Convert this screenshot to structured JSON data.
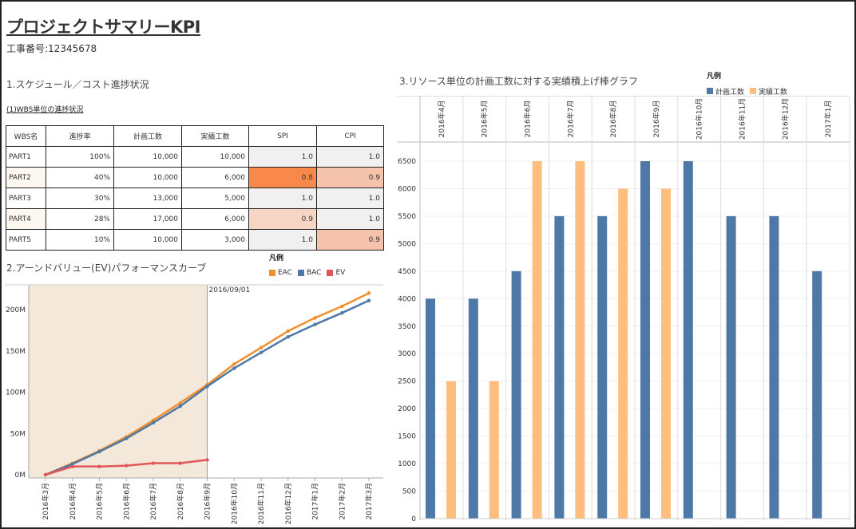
{
  "header": {
    "title": "プロジェクトサマリーKPI",
    "project_no": "工事番号:12345678"
  },
  "sections": {
    "s1": "1.スケジュール／コスト進捗状況",
    "s1_sub": "(1)WBS単位の進捗状況",
    "s2": "2.アーンドバリュー(EV)パフォーマンスカーブ",
    "s3": "3.リソース単位の計画工数に対する実績積上げ棒グラフ"
  },
  "colors": {
    "eac": "#f28e2b",
    "bac": "#4e79a7",
    "ev": "#e15759",
    "plan": "#4e79a7",
    "actual": "#ffbe7d",
    "shade": "#f3e8d9",
    "heat_strong": "#f9894a",
    "heat_light": "#f5c3ab",
    "heat_faint": "#f7d5c4",
    "heat_none": "#f0f0f0"
  },
  "table": {
    "headers": [
      "WBS名",
      "進捗率",
      "計画工数",
      "実績工数",
      "SPI",
      "CPI"
    ],
    "rows": [
      {
        "name": "PART1",
        "progress": "100%",
        "plan": "10,000",
        "actual": "10,000",
        "spi": "1.0",
        "cpi": "1.0",
        "spi_level": "none",
        "cpi_level": "none"
      },
      {
        "name": "PART2",
        "progress": "40%",
        "plan": "10,000",
        "actual": "6,000",
        "spi": "0.8",
        "cpi": "0.9",
        "spi_level": "strong",
        "cpi_level": "light"
      },
      {
        "name": "PART3",
        "progress": "30%",
        "plan": "13,000",
        "actual": "5,000",
        "spi": "1.0",
        "cpi": "1.0",
        "spi_level": "none",
        "cpi_level": "none"
      },
      {
        "name": "PART4",
        "progress": "28%",
        "plan": "17,000",
        "actual": "6,000",
        "spi": "0.9",
        "cpi": "1.0",
        "spi_level": "faint",
        "cpi_level": "none"
      },
      {
        "name": "PART5",
        "progress": "10%",
        "plan": "10,000",
        "actual": "3,000",
        "spi": "1.0",
        "cpi": "0.9",
        "spi_level": "none",
        "cpi_level": "light"
      }
    ]
  },
  "chart_data": [
    {
      "type": "line",
      "title": "2.アーンドバリュー(EV)パフォーマンスカーブ",
      "legend_title": "凡例",
      "legend_position": "top-right",
      "categories": [
        "2016年3月",
        "2016年4月",
        "2016年5月",
        "2016年6月",
        "2016年7月",
        "2016年8月",
        "2016年9月",
        "2016年10月",
        "2016年11月",
        "2016年12月",
        "2017年1月",
        "2017年2月",
        "2017年3月"
      ],
      "series": [
        {
          "name": "EAC",
          "color": "#f28e2b",
          "values": [
            0,
            14,
            29,
            46,
            66,
            87,
            109,
            134,
            154,
            174,
            190,
            204,
            220
          ]
        },
        {
          "name": "BAC",
          "color": "#4e79a7",
          "values": [
            0,
            13,
            28,
            44,
            63,
            83,
            107,
            129,
            148,
            167,
            182,
            196,
            211
          ]
        },
        {
          "name": "EV",
          "color": "#e15759",
          "values": [
            0,
            10,
            10,
            11,
            14,
            14,
            18,
            null,
            null,
            null,
            null,
            null,
            null
          ]
        }
      ],
      "ylim": [
        0,
        230
      ],
      "yticks": [
        0,
        50,
        100,
        150,
        200
      ],
      "ytick_labels": [
        "0M",
        "50M",
        "100M",
        "150M",
        "200M"
      ],
      "shaded_until": "2016年9月",
      "reference_label": "2016/09/01",
      "grid": false
    },
    {
      "type": "bar",
      "title": "3.リソース単位の計画工数に対する実績積上げ棒グラフ",
      "legend_title": "凡例",
      "legend_position": "top-right",
      "categories": [
        "2016年4月",
        "2016年5月",
        "2016年6月",
        "2016年7月",
        "2016年8月",
        "2016年9月",
        "2016年10月",
        "2016年11月",
        "2016年12月",
        "2017年1月"
      ],
      "series": [
        {
          "name": "計画工数",
          "color": "#4e79a7",
          "values": [
            4000,
            4000,
            4500,
            5500,
            5500,
            6500,
            6500,
            5500,
            5500,
            4500
          ]
        },
        {
          "name": "実績工数",
          "color": "#ffbe7d",
          "values": [
            2500,
            2500,
            6500,
            6500,
            6000,
            6000,
            null,
            null,
            null,
            null
          ]
        }
      ],
      "ylim": [
        0,
        6700
      ],
      "yticks": [
        0,
        500,
        1000,
        1500,
        2000,
        2500,
        3000,
        3500,
        4000,
        4500,
        5000,
        5500,
        6000,
        6500
      ],
      "grid": true
    }
  ]
}
